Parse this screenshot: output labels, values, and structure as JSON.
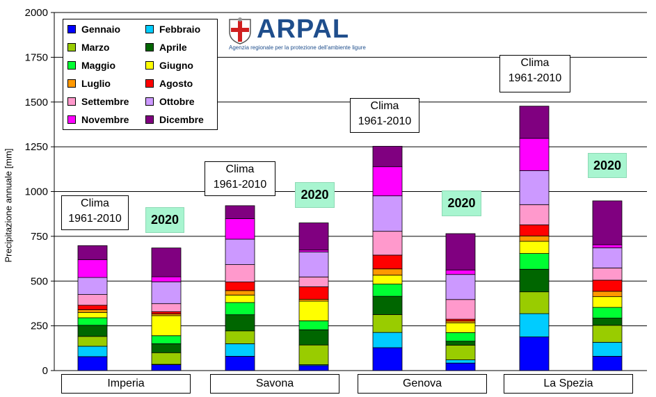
{
  "chart_data": {
    "type": "bar",
    "stacked": true,
    "ylabel": "Precipitazione annuale [mm]",
    "ylim": [
      0,
      2000
    ],
    "yticks": [
      "0",
      "250",
      "500",
      "750",
      "1000",
      "1250",
      "1500",
      "1750",
      "2000"
    ],
    "grid": true,
    "legend_position": "top-left",
    "regions": [
      "Imperia",
      "Savona",
      "Genova",
      "La Spezia"
    ],
    "clima_label_line1": "Clima",
    "clima_label_line2": "1961-2010",
    "year_label": "2020",
    "series": [
      {
        "name": "Gennaio",
        "color": "#0000ff",
        "values": [
          78,
          33,
          80,
          28,
          128,
          42,
          188,
          80
        ]
      },
      {
        "name": "Febbraio",
        "color": "#00ccff",
        "values": [
          58,
          2,
          70,
          5,
          85,
          18,
          130,
          78
        ]
      },
      {
        "name": "Marzo",
        "color": "#99cc00",
        "values": [
          55,
          65,
          72,
          110,
          100,
          82,
          122,
          95
        ]
      },
      {
        "name": "Aprile",
        "color": "#006600",
        "values": [
          62,
          50,
          90,
          85,
          102,
          22,
          126,
          40
        ]
      },
      {
        "name": "Maggio",
        "color": "#00ff33",
        "values": [
          42,
          45,
          68,
          50,
          68,
          48,
          88,
          60
        ]
      },
      {
        "name": "Giugno",
        "color": "#ffff00",
        "values": [
          30,
          112,
          42,
          110,
          50,
          55,
          68,
          60
        ]
      },
      {
        "name": "Luglio",
        "color": "#ff9900",
        "values": [
          15,
          10,
          25,
          10,
          35,
          10,
          30,
          30
        ]
      },
      {
        "name": "Agosto",
        "color": "#ff0000",
        "values": [
          25,
          12,
          48,
          70,
          77,
          10,
          62,
          62
        ]
      },
      {
        "name": "Settembre",
        "color": "#ff99cc",
        "values": [
          60,
          45,
          97,
          55,
          133,
          110,
          113,
          68
        ]
      },
      {
        "name": "Ottobre",
        "color": "#cc99ff",
        "values": [
          95,
          122,
          142,
          140,
          198,
          140,
          190,
          113
        ]
      },
      {
        "name": "Novembre",
        "color": "#ff00ff",
        "values": [
          100,
          28,
          115,
          10,
          163,
          25,
          180,
          17
        ]
      },
      {
        "name": "Dicembre",
        "color": "#800080",
        "values": [
          78,
          161,
          72,
          152,
          114,
          203,
          180,
          245
        ]
      }
    ]
  },
  "logo": {
    "name": "ARPAL",
    "subtitle": "Agenzia regionale per la protezione dell'ambiente ligure"
  }
}
